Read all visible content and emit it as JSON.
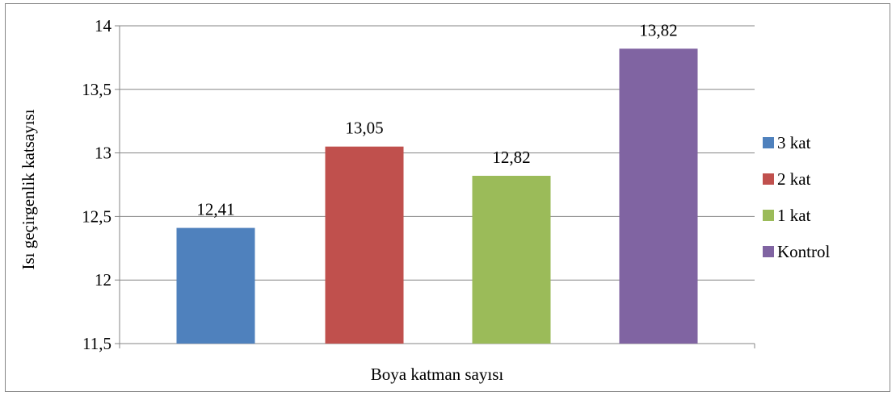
{
  "chart_data": {
    "type": "bar",
    "xlabel": "Boya katman sayısı",
    "ylabel": "Isı geçirgenlik katsayısı",
    "ylim": [
      11.5,
      14
    ],
    "yticks": [
      "11,5",
      "12",
      "12,5",
      "13",
      "13,5",
      "14"
    ],
    "ytick_values": [
      11.5,
      12,
      12.5,
      13,
      13.5,
      14
    ],
    "grid": true,
    "legend_position": "right",
    "series": [
      {
        "name": "3 kat",
        "value": 12.41,
        "label": "12,41",
        "color": "#4F81BD"
      },
      {
        "name": "2 kat",
        "value": 13.05,
        "label": "13,05",
        "color": "#C0504D"
      },
      {
        "name": "1 kat",
        "value": 12.82,
        "label": "12,82",
        "color": "#9BBB59"
      },
      {
        "name": "Kontrol",
        "value": 13.82,
        "label": "13,82",
        "color": "#8064A2"
      }
    ]
  }
}
